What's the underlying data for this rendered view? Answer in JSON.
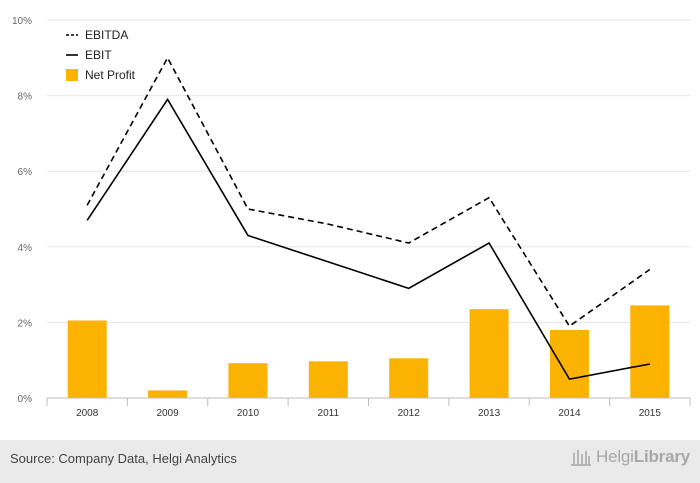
{
  "chart_data": {
    "type": "bar+line",
    "categories": [
      "2008",
      "2009",
      "2010",
      "2011",
      "2012",
      "2013",
      "2014",
      "2015"
    ],
    "series": [
      {
        "name": "EBITDA",
        "kind": "line",
        "style": "dashed",
        "values": [
          5.1,
          9.0,
          5.0,
          4.6,
          4.1,
          5.3,
          1.9,
          3.4
        ]
      },
      {
        "name": "EBIT",
        "kind": "line",
        "style": "solid",
        "values": [
          4.7,
          7.9,
          4.3,
          3.6,
          2.9,
          4.1,
          0.5,
          0.9
        ]
      },
      {
        "name": "Net Profit",
        "kind": "bar",
        "values": [
          2.05,
          0.2,
          0.92,
          0.97,
          1.05,
          2.35,
          1.8,
          2.45
        ]
      }
    ],
    "y_ticks": [
      "0%",
      "2%",
      "4%",
      "6%",
      "8%",
      "10%"
    ],
    "ylim": [
      0,
      10
    ],
    "y_unit": "%",
    "legend_position": "top-left",
    "grid": true,
    "colors": {
      "bar": "#FBB200",
      "line": "#000000",
      "grid": "#e6e6e6",
      "axis_text": "#666666"
    }
  },
  "footer": {
    "source": "Source: Company Data, Helgi Analytics",
    "brand_light": "Helgi",
    "brand_bold": "Library"
  }
}
